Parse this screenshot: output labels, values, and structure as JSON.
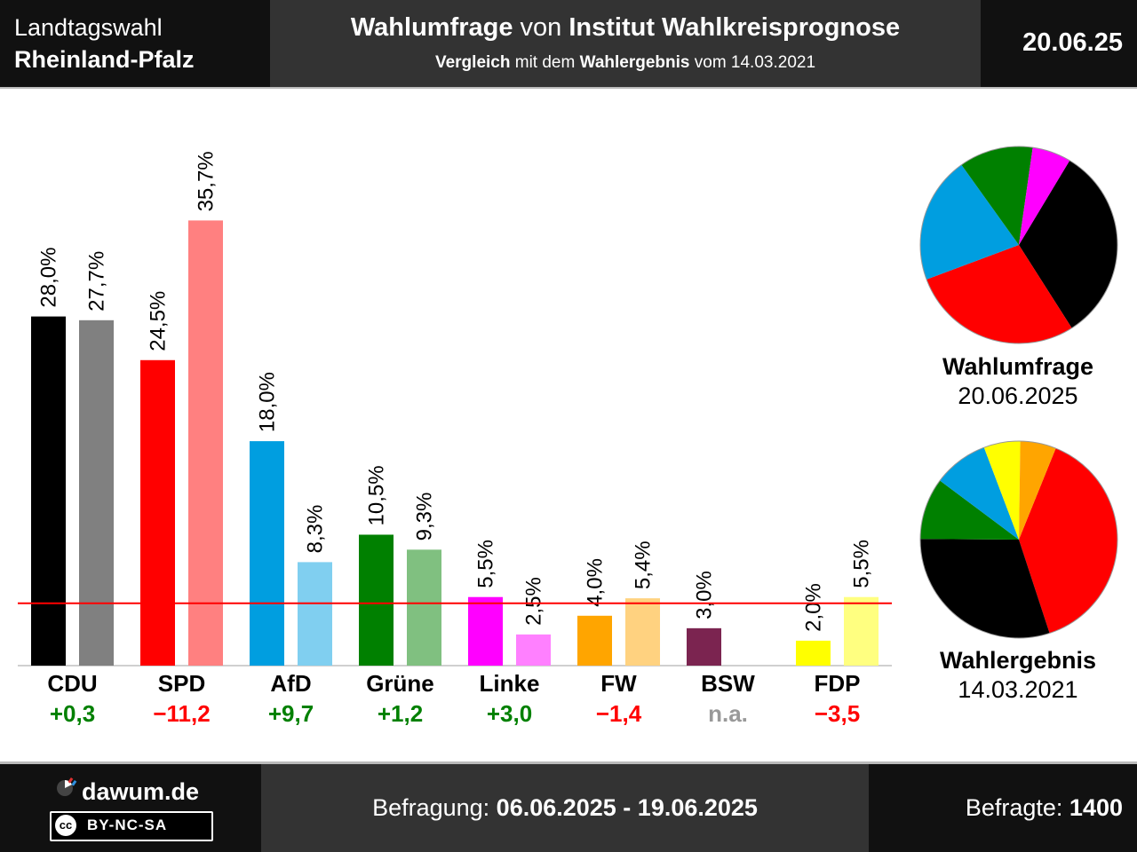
{
  "header": {
    "region_line1": "Landtagswahl",
    "region_line2": "Rheinland-Pfalz",
    "title_bold1": "Wahlumfrage",
    "title_mid": " von ",
    "title_bold2": "Institut Wahlkreisprognose",
    "subtitle_bold1": "Vergleich",
    "subtitle_mid": " mit dem ",
    "subtitle_bold2": "Wahlergebnis",
    "subtitle_end": " vom 14.03.2021",
    "date": "20.06.25"
  },
  "colors": {
    "survey_reference_line": "#ff0000",
    "change_positive": "#008000",
    "change_negative": "#ff0000",
    "change_na": "#999999"
  },
  "chart_data": {
    "type": "bar",
    "categories": [
      "CDU",
      "SPD",
      "AfD",
      "Grüne",
      "Linke",
      "FW",
      "BSW",
      "FDP"
    ],
    "series": [
      {
        "values": [
          28.0,
          24.5,
          18.0,
          10.5,
          5.5,
          4.0,
          3.0,
          2.0
        ],
        "labels": [
          "28,0%",
          "24,5%",
          "18,0%",
          "10,5%",
          "5,5%",
          "4,0%",
          "3,0%",
          "2,0%"
        ],
        "colors": [
          "#000000",
          "#ff0000",
          "#009ee0",
          "#008000",
          "#ff00ff",
          "#ffa500",
          "#7b2450",
          "#ffff00"
        ]
      },
      {
        "values": [
          27.7,
          35.7,
          8.3,
          9.3,
          2.5,
          5.4,
          null,
          5.5
        ],
        "labels": [
          "27,7%",
          "35,7%",
          "8,3%",
          "9,3%",
          "2,5%",
          "5,4%",
          "",
          "5,5%"
        ],
        "colors": [
          "#808080",
          "#ff8080",
          "#80cff0",
          "#80c080",
          "#ff80ff",
          "#ffd280",
          "#bd92a8",
          "#ffff80"
        ]
      }
    ],
    "changes": [
      "+0,3",
      "−11,2",
      "+9,7",
      "+1,2",
      "+3,0",
      "−1,4",
      "n.a.",
      "−3,5"
    ],
    "change_signs": [
      "pos",
      "neg",
      "pos",
      "pos",
      "pos",
      "neg",
      "na",
      "neg"
    ],
    "threshold": 5,
    "ylim": [
      0,
      36
    ]
  },
  "pies": [
    {
      "title": "Wahlumfrage",
      "date": "20.06.2025",
      "slices": [
        {
          "party": "CDU",
          "value": 28.0,
          "color": "#000000"
        },
        {
          "party": "SPD",
          "value": 24.5,
          "color": "#ff0000"
        },
        {
          "party": "AfD",
          "value": 18.0,
          "color": "#009ee0"
        },
        {
          "party": "Grüne",
          "value": 10.5,
          "color": "#008000"
        },
        {
          "party": "Linke",
          "value": 5.5,
          "color": "#ff00ff"
        }
      ]
    },
    {
      "title": "Wahlergebnis",
      "date": "14.03.2021",
      "slices": [
        {
          "party": "SPD",
          "value": 35.7,
          "color": "#ff0000"
        },
        {
          "party": "CDU",
          "value": 27.7,
          "color": "#000000"
        },
        {
          "party": "Grüne",
          "value": 9.3,
          "color": "#008000"
        },
        {
          "party": "AfD",
          "value": 8.3,
          "color": "#009ee0"
        },
        {
          "party": "FDP",
          "value": 5.5,
          "color": "#ffff00"
        },
        {
          "party": "FW",
          "value": 5.4,
          "color": "#ffa500"
        }
      ]
    }
  ],
  "footer": {
    "site": "dawum.de",
    "license": "BY-NC-SA",
    "license_badge": "cc",
    "survey_label": "Befragung: ",
    "survey_period": "06.06.2025 - 19.06.2025",
    "respondents_label": "Befragte: ",
    "respondents": "1400"
  }
}
